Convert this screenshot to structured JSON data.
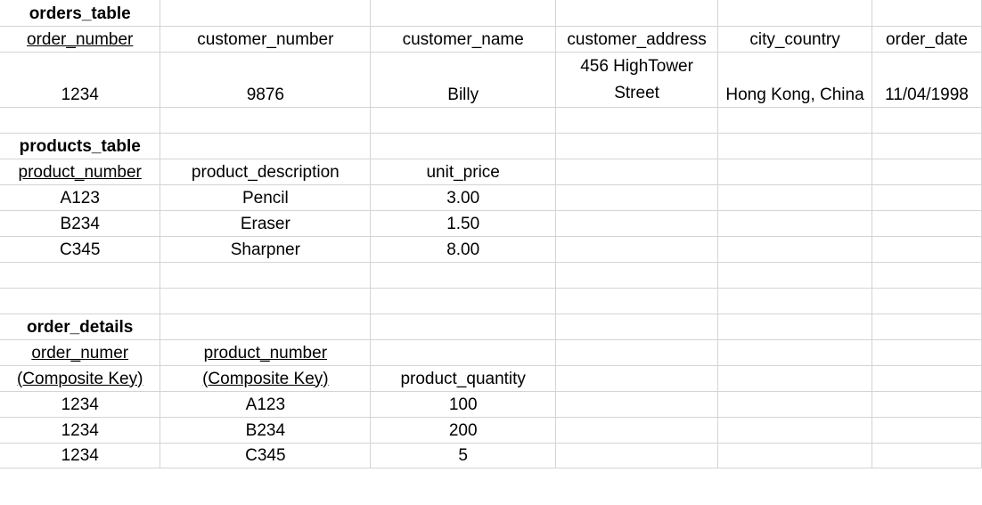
{
  "orders_table": {
    "title": "orders_table",
    "headers": [
      "order_number",
      "customer_number",
      "customer_name",
      "customer_address",
      "city_country",
      "order_date"
    ],
    "row": [
      "1234",
      "9876",
      "Billy",
      "456 HighTower Street",
      "Hong Kong, China",
      "11/04/1998"
    ]
  },
  "products_table": {
    "title": "products_table",
    "headers": [
      "product_number",
      "product_description",
      "unit_price"
    ],
    "rows": [
      [
        "A123",
        "Pencil",
        "3.00"
      ],
      [
        "B234",
        "Eraser",
        "1.50"
      ],
      [
        "C345",
        "Sharpner",
        "8.00"
      ]
    ]
  },
  "order_details": {
    "title": "order_details",
    "header_line1": [
      "order_numer",
      "product_number"
    ],
    "header_line2": [
      "(Composite Key)",
      "(Composite Key)",
      "product_quantity"
    ],
    "rows": [
      [
        "1234",
        "A123",
        "100"
      ],
      [
        "1234",
        "B234",
        "200"
      ],
      [
        "1234",
        "C345",
        "5"
      ]
    ]
  }
}
